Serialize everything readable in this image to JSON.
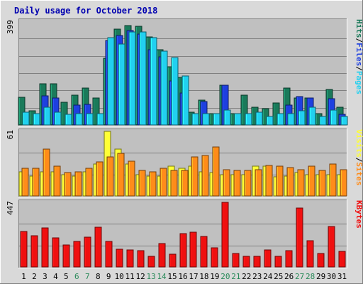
{
  "chart_data": {
    "type": "bar",
    "title": "Daily usage for October 2018",
    "colors": {
      "background": "#d9d9d9",
      "plot_background": "#c0c0c0",
      "title": "#0000b0",
      "grid": "#808080",
      "hits": "#1a7a5a",
      "files": "#1e40e0",
      "pages": "#22d0f0",
      "visits": "#ffff33",
      "sites": "#ff8c1a",
      "kbytes": "#f01010",
      "weekend_day": "#2a8a5a",
      "weekday_day": "#000000"
    },
    "days": [
      "1",
      "2",
      "3",
      "4",
      "5",
      "6",
      "7",
      "8",
      "9",
      "10",
      "11",
      "12",
      "13",
      "14",
      "15",
      "16",
      "17",
      "18",
      "19",
      "20",
      "21",
      "22",
      "23",
      "24",
      "25",
      "26",
      "27",
      "28",
      "29",
      "30",
      "31"
    ],
    "weekend_days": [
      6,
      7,
      13,
      14,
      20,
      21,
      27,
      28
    ],
    "panels": [
      {
        "id": "usage",
        "ymax_label": "399",
        "ymax": 399,
        "legend": [
          {
            "label": "Pages",
            "color": "#22d0f0"
          },
          {
            "label": "/",
            "color": "#000000"
          },
          {
            "label": "Files",
            "color": "#1e40e0"
          },
          {
            "label": "/",
            "color": "#000000"
          },
          {
            "label": "Hits",
            "color": "#1a7a5a"
          }
        ],
        "series": [
          {
            "name": "Hits",
            "color": "#1a7a5a",
            "values": [
              107,
              55,
              158,
              158,
              87,
              115,
              143,
              103,
              258,
              368,
              383,
              381,
              338,
              290,
              224,
              182,
              50,
              95,
              43,
              154,
              43,
              116,
              68,
              63,
              85,
              141,
              103,
              103,
              43,
              137,
              67
            ]
          },
          {
            "name": "Files",
            "color": "#1e40e0",
            "values": [
              0,
              0,
              112,
              103,
              0,
              76,
              80,
              0,
              326,
              344,
              364,
              350,
              289,
              263,
              170,
              123,
              0,
              91,
              0,
              154,
              0,
              0,
              0,
              0,
              0,
              76,
              109,
              103,
              0,
              100,
              42
            ]
          },
          {
            "name": "Pages",
            "color": "#22d0f0",
            "values": [
              48,
              43,
              68,
              48,
              40,
              43,
              43,
              43,
              336,
              312,
              358,
              358,
              336,
              284,
              260,
              188,
              43,
              43,
              43,
              58,
              43,
              43,
              48,
              32,
              43,
              43,
              54,
              67,
              32,
              58,
              32
            ]
          }
        ]
      },
      {
        "id": "visits",
        "ymax_label": "61",
        "ymax": 61,
        "legend": [
          {
            "label": "Sites",
            "color": "#ff8c1a"
          },
          {
            "label": "/",
            "color": "#000000"
          },
          {
            "label": "Visits",
            "color": "#ffff33"
          }
        ],
        "series": [
          {
            "name": "Visits",
            "color": "#ffff33",
            "values": [
              23,
              19,
              23,
              23,
              20,
              19,
              23,
              30,
              61,
              44,
              30,
              20,
              19,
              19,
              28,
              26,
              28,
              23,
              22,
              20,
              20,
              20,
              28,
              28,
              18,
              19,
              22,
              20,
              20,
              20,
              20
            ]
          },
          {
            "name": "Sites",
            "color": "#ff8c1a",
            "values": [
              26,
              26,
              44,
              28,
              22,
              23,
              26,
              32,
              37,
              40,
              33,
              24,
              23,
              26,
              24,
              24,
              37,
              38,
              46,
              25,
              24,
              24,
              25,
              29,
              28,
              27,
              25,
              28,
              24,
              30,
              25
            ]
          }
        ]
      },
      {
        "id": "kbytes",
        "ymax_label": "447",
        "ymax": 447,
        "legend": [
          {
            "label": "KBytes",
            "color": "#f01010"
          }
        ],
        "series": [
          {
            "name": "KBytes",
            "color": "#f01010",
            "values": [
              244,
              216,
              270,
              202,
              150,
              176,
              205,
              276,
              177,
              125,
              118,
              111,
              73,
              163,
              87,
              229,
              243,
              209,
              131,
              447,
              91,
              73,
              73,
              120,
              73,
              114,
              406,
              181,
              93,
              279,
              110
            ]
          }
        ]
      }
    ]
  }
}
